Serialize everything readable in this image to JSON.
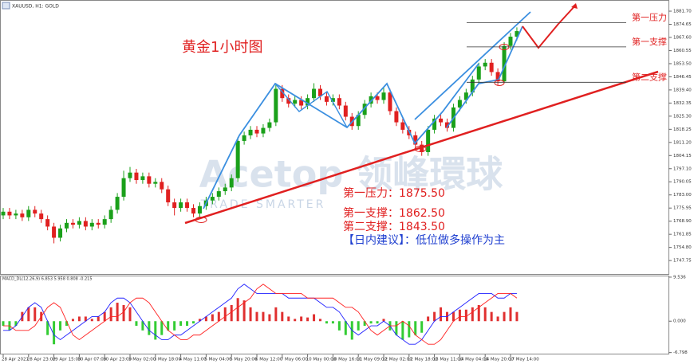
{
  "chart_data": [
    {
      "type": "candlestick",
      "header": "XAUUSD, H1: GOLD",
      "title": "黄金1小时图",
      "categories": [
        "28 Apr 2021",
        null,
        null,
        null,
        "28 Apr 23:00",
        null,
        null,
        null,
        "29 Apr 15:00",
        null,
        null,
        null,
        "30 Apr 07:00",
        null,
        null,
        null,
        "30 Apr 23:00",
        null,
        null,
        null,
        "3 May 02:00",
        null,
        null,
        null,
        "3 May 18:00",
        null,
        null,
        null,
        "4 May 11:00",
        null,
        null,
        null,
        "5 May 04:00",
        null,
        null,
        null,
        "5 May 20:00",
        null,
        null,
        null,
        "6 May 12:00",
        null,
        null,
        null,
        "7 May 06:00",
        null,
        null,
        null,
        "10 May 00:00",
        null,
        null,
        null,
        "10 May 16:00",
        null,
        null,
        null,
        "11 May 09:00",
        null,
        null,
        null,
        "12 May 02:00",
        null,
        null,
        null,
        "12 May 18:00",
        null,
        null,
        null,
        "13 May 11:00",
        null,
        null,
        null,
        "14 May 04:00",
        null,
        null,
        null,
        "14 May 20:00",
        null,
        null,
        null,
        "17 May 14:00",
        null
      ],
      "open": [
        1772,
        1774,
        1772,
        1773,
        1771,
        1775,
        1773,
        1770,
        1766,
        1760,
        1765,
        1768,
        1767,
        1769,
        1766,
        1768,
        1767,
        1770,
        1775,
        1782,
        1792,
        1795,
        1791,
        1793,
        1789,
        1790,
        1786,
        1779,
        1776,
        1779,
        1776,
        1773,
        1777,
        1780,
        1782,
        1785,
        1787,
        1792,
        1812,
        1815,
        1818,
        1816,
        1819,
        1822,
        1840,
        1835,
        1832,
        1834,
        1831,
        1835,
        1840,
        1836,
        1833,
        1835,
        1831,
        1825,
        1820,
        1826,
        1832,
        1836,
        1834,
        1838,
        1828,
        1822,
        1818,
        1815,
        1810,
        1806,
        1818,
        1824,
        1822,
        1819,
        1830,
        1834,
        1838,
        1845,
        1852,
        1854,
        1849,
        1844,
        1863,
        1868
      ],
      "high": [
        1776,
        1776,
        1775,
        1775,
        1777,
        1777,
        1775,
        1772,
        1768,
        1767,
        1770,
        1770,
        1771,
        1771,
        1770,
        1770,
        1772,
        1777,
        1784,
        1796,
        1798,
        1797,
        1795,
        1795,
        1792,
        1792,
        1788,
        1781,
        1781,
        1781,
        1778,
        1779,
        1782,
        1784,
        1787,
        1789,
        1794,
        1814,
        1817,
        1820,
        1820,
        1821,
        1824,
        1843,
        1842,
        1837,
        1836,
        1836,
        1837,
        1843,
        1842,
        1838,
        1837,
        1837,
        1833,
        1827,
        1828,
        1834,
        1838,
        1838,
        1841,
        1840,
        1830,
        1824,
        1820,
        1817,
        1812,
        1820,
        1826,
        1826,
        1824,
        1832,
        1836,
        1840,
        1847,
        1854,
        1856,
        1856,
        1851,
        1865,
        1870,
        1873
      ],
      "low": [
        1770,
        1770,
        1770,
        1769,
        1769,
        1771,
        1768,
        1764,
        1757,
        1758,
        1763,
        1765,
        1765,
        1764,
        1764,
        1765,
        1765,
        1768,
        1773,
        1780,
        1790,
        1789,
        1789,
        1787,
        1787,
        1784,
        1777,
        1772,
        1774,
        1774,
        1771,
        1771,
        1775,
        1778,
        1780,
        1783,
        1785,
        1790,
        1810,
        1813,
        1814,
        1814,
        1817,
        1820,
        1833,
        1830,
        1830,
        1829,
        1829,
        1833,
        1834,
        1831,
        1831,
        1829,
        1823,
        1818,
        1818,
        1824,
        1830,
        1832,
        1832,
        1826,
        1820,
        1816,
        1813,
        1808,
        1804,
        1804,
        1816,
        1820,
        1817,
        1817,
        1828,
        1832,
        1836,
        1843,
        1850,
        1847,
        1842,
        1843,
        1861,
        1866
      ],
      "close": [
        1774,
        1772,
        1773,
        1771,
        1775,
        1773,
        1770,
        1766,
        1760,
        1765,
        1768,
        1767,
        1769,
        1766,
        1768,
        1767,
        1770,
        1775,
        1782,
        1792,
        1795,
        1791,
        1793,
        1789,
        1790,
        1786,
        1779,
        1776,
        1779,
        1776,
        1773,
        1777,
        1780,
        1782,
        1785,
        1787,
        1792,
        1812,
        1815,
        1818,
        1816,
        1819,
        1822,
        1840,
        1835,
        1832,
        1834,
        1831,
        1835,
        1840,
        1836,
        1833,
        1835,
        1831,
        1825,
        1820,
        1826,
        1832,
        1836,
        1834,
        1838,
        1828,
        1822,
        1818,
        1815,
        1810,
        1806,
        1818,
        1824,
        1822,
        1819,
        1830,
        1834,
        1838,
        1845,
        1852,
        1854,
        1849,
        1844,
        1863,
        1868,
        1871
      ],
      "up_color": "#1aa01a",
      "down_color": "#e02020",
      "ylim": [
        1740.1,
        1887.7
      ],
      "yticks": [
        {
          "value": 1881.7,
          "label": "1881.70"
        },
        {
          "value": 1874.65,
          "label": "1874.65"
        },
        {
          "value": 1867.6,
          "label": "1867.60"
        },
        {
          "value": 1860.55,
          "label": "1860.55"
        },
        {
          "value": 1853.5,
          "label": "1853.50"
        },
        {
          "value": 1846.45,
          "label": "1846.45"
        },
        {
          "value": 1839.4,
          "label": "1839.40"
        },
        {
          "value": 1832.35,
          "label": "1832.35"
        },
        {
          "value": 1825.3,
          "label": "1825.30"
        },
        {
          "value": 1818.25,
          "label": "1818.25"
        },
        {
          "value": 1811.2,
          "label": "1811.20"
        },
        {
          "value": 1804.15,
          "label": "1804.15"
        },
        {
          "value": 1797.1,
          "label": "1797.10"
        },
        {
          "value": 1790.05,
          "label": "1790.05"
        },
        {
          "value": 1783,
          "label": "1783.00"
        },
        {
          "value": 1775.95,
          "label": "1775.95"
        },
        {
          "value": 1768.9,
          "label": "1768.90"
        },
        {
          "value": 1761.85,
          "label": "1761.85"
        },
        {
          "value": 1754.8,
          "label": "1754.80"
        },
        {
          "value": 1747.75,
          "label": "1747.75"
        }
      ],
      "levels": [
        {
          "label": "第一压力",
          "value": 1875.5
        },
        {
          "label": "第一支撑",
          "value": 1862.5
        },
        {
          "label": "第二支撑",
          "value": 1843.5
        }
      ],
      "level_color": "#e02020",
      "annotations": [
        "第一压力：1875.50",
        "第一支撑：1862.50",
        "第二支撑：1843.50"
      ],
      "advice": "【日内建议】：低位做多操作为主",
      "watermark": "Acetop 领峰環球",
      "watermark_sub": "TRADE SMARTER"
    },
    {
      "type": "macd",
      "header": "MACD_DL(12,26,9) 6.853 5.958 0.808 -0.215",
      "ylim": [
        -7.03,
        9.7
      ],
      "yticks": [
        9.536,
        {
          "value": 0,
          "label": "0.000"
        },
        -6.798
      ],
      "histogram": {
        "up_color": "#e03030",
        "down_color": "#33cc33",
        "values": [
          -1,
          -2,
          -1,
          2,
          3,
          3,
          2,
          -3,
          -5,
          -2,
          -1,
          0.5,
          1,
          1,
          0.5,
          1,
          2,
          3,
          4,
          3.5,
          3,
          -1,
          -2,
          -3,
          -4,
          -3,
          -2,
          -2,
          -1,
          -1,
          -0.5,
          0.5,
          1,
          1.5,
          2,
          3,
          3.5,
          5,
          4.5,
          3,
          2,
          2,
          1.5,
          3,
          2,
          1,
          0.5,
          1,
          0.8,
          1.5,
          0.5,
          -0.5,
          -0.5,
          -2,
          -3,
          -4,
          -2,
          -1,
          -0.5,
          -0.5,
          0.5,
          -2,
          -3,
          -4,
          -3.5,
          -3,
          -2.5,
          1,
          2,
          3,
          2,
          2,
          2.5,
          2.5,
          3,
          3.5,
          3,
          2,
          1,
          2,
          3,
          2
        ]
      },
      "series": [
        {
          "color": "#2020ff",
          "values": [
            -2,
            -2,
            -1,
            1,
            3,
            4,
            3,
            0,
            -3,
            -4,
            -3,
            -2,
            -1,
            0,
            1,
            1,
            2,
            4,
            5,
            5,
            4,
            2,
            0,
            -2,
            -3,
            -4,
            -4,
            -3,
            -3,
            -2,
            -1,
            0,
            1,
            2,
            3,
            4,
            5,
            7,
            8,
            7,
            6,
            6,
            6,
            6,
            6,
            5,
            5,
            5,
            5,
            5,
            4,
            3,
            3,
            2,
            0,
            -2,
            -3,
            -2,
            -1,
            -1,
            0,
            -1,
            -3,
            -4,
            -5,
            -5,
            -4,
            -2,
            0,
            1,
            1,
            2,
            3,
            4,
            5,
            6,
            6,
            6,
            5,
            5,
            6,
            6
          ]
        },
        {
          "color": "#ff2020",
          "values": [
            -1,
            -1,
            -2,
            -2,
            -2,
            -1,
            1,
            3,
            4,
            3,
            0,
            -3,
            -4,
            -3,
            -2,
            -1,
            0,
            1,
            1,
            2,
            4,
            5,
            5,
            4,
            2,
            0,
            -2,
            -3,
            -4,
            -4,
            -3,
            -3,
            -2,
            -1,
            0,
            1,
            2,
            3,
            4,
            5,
            7,
            8,
            7,
            6,
            6,
            6,
            6,
            6,
            5,
            5,
            5,
            5,
            5,
            4,
            3,
            3,
            2,
            0,
            -2,
            -3,
            -2,
            -1,
            -1,
            0,
            -1,
            -3,
            -4,
            -5,
            -5,
            -4,
            -2,
            0,
            1,
            1,
            2,
            3,
            4,
            5,
            6,
            6,
            6,
            5
          ]
        }
      ]
    }
  ]
}
